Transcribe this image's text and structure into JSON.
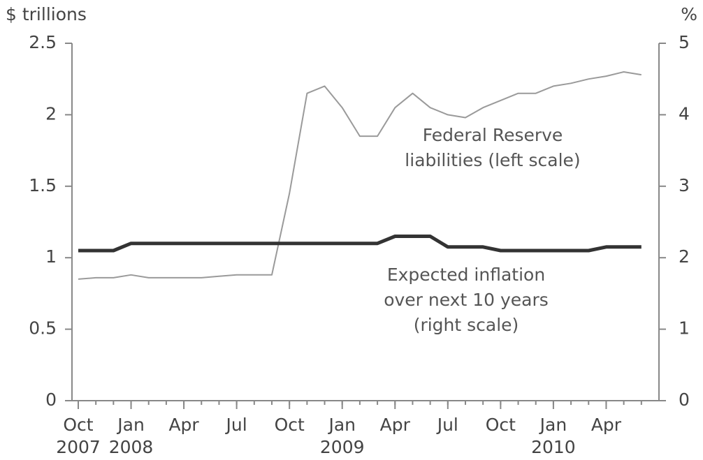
{
  "chart_data": {
    "type": "line",
    "y_label": "$ trillions",
    "y2_label": "%",
    "x": [
      "2007-10",
      "2007-11",
      "2007-12",
      "2008-01",
      "2008-02",
      "2008-03",
      "2008-04",
      "2008-05",
      "2008-06",
      "2008-07",
      "2008-08",
      "2008-09",
      "2008-10",
      "2008-11",
      "2008-12",
      "2009-01",
      "2009-02",
      "2009-03",
      "2009-04",
      "2009-05",
      "2009-06",
      "2009-07",
      "2009-08",
      "2009-09",
      "2009-10",
      "2009-11",
      "2009-12",
      "2010-01",
      "2010-02",
      "2010-03",
      "2010-04",
      "2010-05",
      "2010-06"
    ],
    "xlim": [
      "2007-10",
      "2010-07"
    ],
    "xticks": [
      {
        "value": "2007-10",
        "label": "Oct"
      },
      {
        "value": "2008-01",
        "label": "Jan"
      },
      {
        "value": "2008-04",
        "label": "Apr"
      },
      {
        "value": "2008-07",
        "label": "Jul"
      },
      {
        "value": "2008-10",
        "label": "Oct"
      },
      {
        "value": "2009-01",
        "label": "Jan"
      },
      {
        "value": "2009-04",
        "label": "Apr"
      },
      {
        "value": "2009-07",
        "label": "Jul"
      },
      {
        "value": "2009-10",
        "label": "Oct"
      },
      {
        "value": "2010-01",
        "label": "Jan"
      },
      {
        "value": "2010-04",
        "label": "Apr"
      }
    ],
    "year_labels": [
      {
        "value": "2007-10",
        "label": "2007"
      },
      {
        "value": "2008-01",
        "label": "2008"
      },
      {
        "value": "2009-01",
        "label": "2009"
      },
      {
        "value": "2010-01",
        "label": "2010"
      }
    ],
    "ylim": [
      0,
      2.5
    ],
    "yticks": [
      0,
      0.5,
      1,
      1.5,
      2,
      2.5
    ],
    "y2lim": [
      0,
      5
    ],
    "y2ticks": [
      0,
      1,
      2,
      3,
      4,
      5
    ],
    "series": [
      {
        "name": "Federal Reserve liabilities (left scale)",
        "color": "#9a9a9a",
        "values": [
          0.85,
          0.86,
          0.86,
          0.88,
          0.86,
          0.86,
          0.86,
          0.86,
          0.87,
          0.88,
          0.88,
          0.88,
          1.45,
          2.15,
          2.2,
          2.05,
          1.85,
          1.85,
          2.05,
          2.15,
          2.05,
          2.0,
          1.98,
          2.05,
          2.1,
          2.15,
          2.15,
          2.2,
          2.22,
          2.25,
          2.27,
          2.3,
          2.28
        ]
      },
      {
        "name": "Expected inflation over next 10 years (right scale)",
        "color": "#333333",
        "axis": "y2",
        "values": [
          2.1,
          2.1,
          2.1,
          2.2,
          2.2,
          2.2,
          2.2,
          2.2,
          2.2,
          2.2,
          2.2,
          2.2,
          2.2,
          2.2,
          2.2,
          2.2,
          2.2,
          2.2,
          2.3,
          2.3,
          2.3,
          2.15,
          2.15,
          2.15,
          2.1,
          2.1,
          2.1,
          2.1,
          2.1,
          2.1,
          2.15,
          2.15,
          2.15
        ]
      }
    ],
    "annotations": [
      {
        "series": 0,
        "lines": [
          "Federal Reserve",
          "liabilities (left scale)"
        ]
      },
      {
        "series": 1,
        "lines": [
          "Expected inflation",
          "over next 10 years",
          "(right scale)"
        ]
      }
    ]
  }
}
